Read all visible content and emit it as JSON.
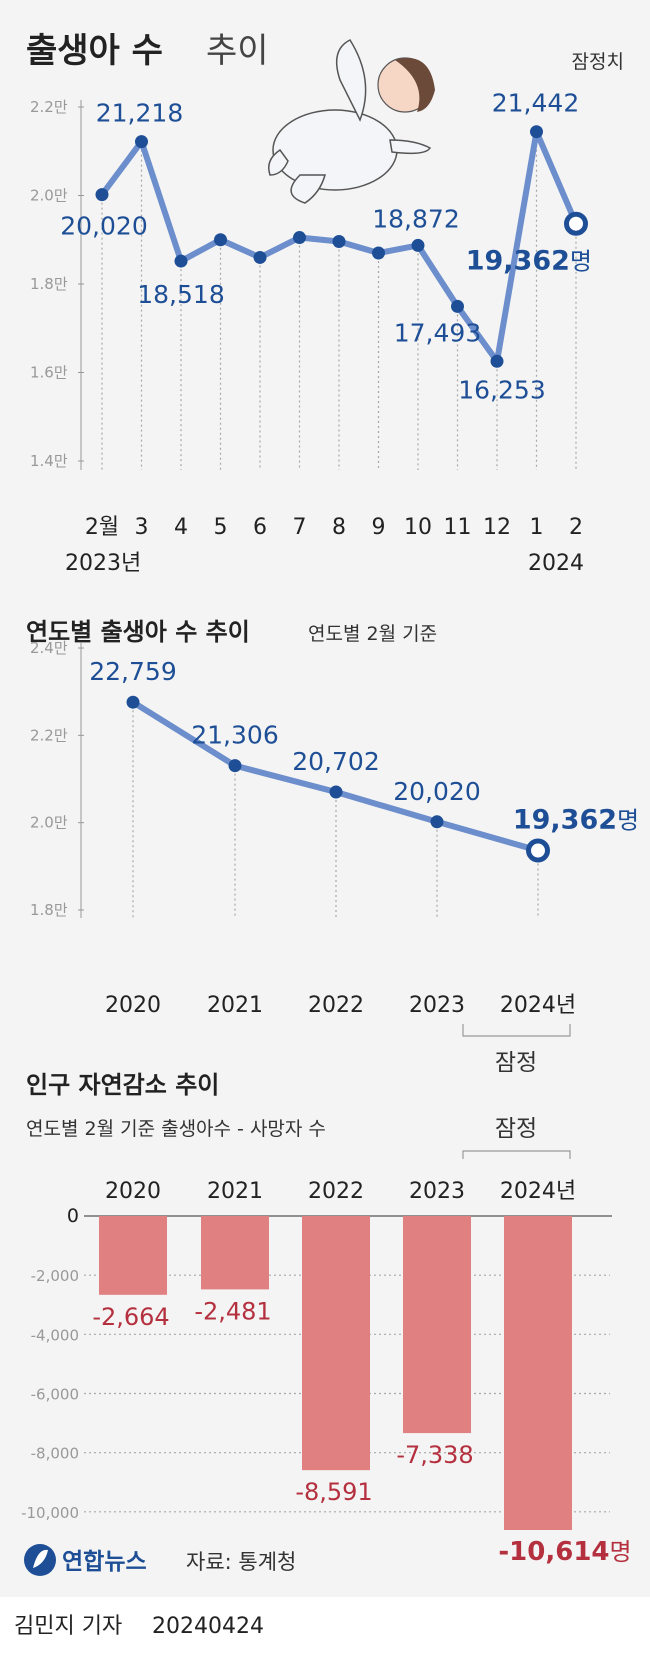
{
  "colors": {
    "line": "#6c8ecc",
    "dot": "#1e4f96",
    "label_blue": "#1e4f96",
    "bar": "#e08080",
    "label_red": "#b5303e",
    "background": "#f4f4f4"
  },
  "chart_data": [
    {
      "type": "line",
      "title": "출생아 수",
      "title_suffix": "추이",
      "note": "잠정치",
      "categories": [
        "2월",
        "3",
        "4",
        "5",
        "6",
        "7",
        "8",
        "9",
        "10",
        "11",
        "12",
        "1",
        "2"
      ],
      "year_labels": [
        "2023년",
        "2024"
      ],
      "values": [
        20020,
        21218,
        18518,
        19000,
        18600,
        19050,
        18960,
        18700,
        18872,
        17493,
        16253,
        21442,
        19362
      ],
      "data_labels": [
        "20,020",
        "21,218",
        "18,518",
        "",
        "",
        "",
        "",
        "",
        "18,872",
        "17,493",
        "16,253",
        "21,442",
        "19,362"
      ],
      "unit_suffix": "명",
      "yticks": [
        "2.2만",
        "2.0만",
        "1.8만",
        "1.6만",
        "1.4만"
      ],
      "ylim": [
        14000,
        22000
      ]
    },
    {
      "type": "line",
      "title": "연도별 출생아 수 추이",
      "subtitle": "연도별 2월 기준",
      "categories": [
        "2020",
        "2021",
        "2022",
        "2023",
        "2024년"
      ],
      "values": [
        22759,
        21306,
        20702,
        20020,
        19362
      ],
      "data_labels": [
        "22,759",
        "21,306",
        "20,702",
        "20,020",
        "19,362"
      ],
      "unit_suffix": "명",
      "yticks": [
        "2.4만",
        "2.2만",
        "2.0만",
        "1.8만"
      ],
      "ylim": [
        18000,
        24000
      ],
      "provisional_label": "잠정"
    },
    {
      "type": "bar",
      "title": "인구 자연감소 추이",
      "subtitle": "연도별 2월 기준 출생아수 - 사망자 수",
      "categories": [
        "2020",
        "2021",
        "2022",
        "2023",
        "2024년"
      ],
      "values": [
        -2664,
        -2481,
        -8591,
        -7338,
        -10614
      ],
      "data_labels": [
        "-2,664",
        "-2,481",
        "-8,591",
        "-7,338",
        "-10,614"
      ],
      "unit_suffix": "명",
      "yticks": [
        "0",
        "-2,000",
        "-4,000",
        "-6,000",
        "-8,000",
        "-10,000"
      ],
      "ylim": [
        -10614,
        0
      ],
      "provisional_label": "잠정"
    }
  ],
  "footer": {
    "logo_text": "연합뉴스",
    "source": "자료: 통계청",
    "byline": "김민지 기자",
    "date": "20240424"
  }
}
